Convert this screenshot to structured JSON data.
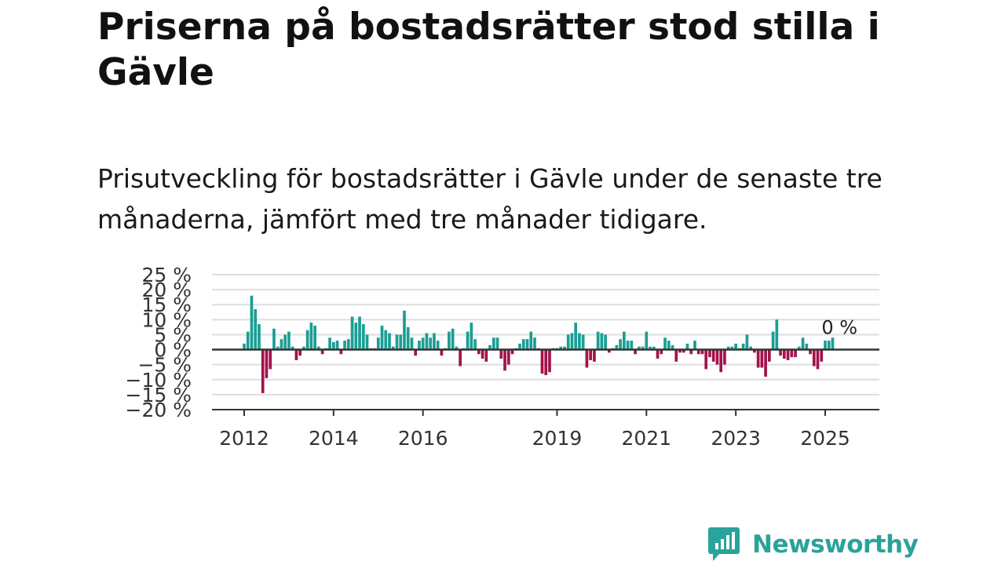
{
  "title": "Priserna på bostadsrätter stod stilla i Gävle",
  "subtitle": "Prisutveckling för bostadsrätter i Gävle under de senaste tre månaderna, jämfört med tre månader tidigare.",
  "brand": {
    "name": "Newsworthy",
    "color": "#2aa39a"
  },
  "chart_data": {
    "type": "bar",
    "title": "",
    "xlabel": "",
    "ylabel": "",
    "ylim": [
      -20,
      25
    ],
    "yticks": [
      25,
      20,
      15,
      10,
      5,
      0,
      -5,
      -10,
      -15,
      -20
    ],
    "y_tick_labels": [
      "25 %",
      "20 %",
      "15 %",
      "10 %",
      "5 %",
      "0 %",
      "−5 %",
      "−10 %",
      "−15 %",
      "−20 %"
    ],
    "x_tick_labels": [
      "2012",
      "2014",
      "2016",
      "2019",
      "2021",
      "2023",
      "2025"
    ],
    "x_tick_years": [
      2012,
      2014,
      2016,
      2019,
      2021,
      2023,
      2025
    ],
    "grid": true,
    "colors": {
      "positive": "#1a9e94",
      "negative": "#a3124a",
      "grid": "#dedede",
      "axis": "#333333"
    },
    "last_value_label": "0 %",
    "start": "2012-01",
    "values": [
      2,
      6,
      18,
      13.5,
      8.5,
      -14.5,
      -9.5,
      -6.5,
      7,
      1,
      3.5,
      5,
      6,
      1,
      -3.5,
      -2,
      1,
      6.5,
      9,
      8,
      1,
      -1.5,
      0.5,
      4,
      2.5,
      3,
      -1.5,
      3,
      3.5,
      11,
      9,
      11,
      8.5,
      5,
      0.5,
      0.5,
      4,
      8,
      6.5,
      5.5,
      1,
      5,
      5,
      13,
      7.5,
      4,
      -2,
      3,
      4,
      5.5,
      4,
      5.5,
      3,
      -2,
      0.5,
      6,
      7,
      1,
      -5.5,
      0.5,
      6,
      9,
      3.5,
      -1.5,
      -3,
      -4,
      1.5,
      4,
      4,
      -3,
      -7,
      -5,
      -1.5,
      0.5,
      2,
      3.5,
      3.5,
      6,
      4,
      0.5,
      -8,
      -8.5,
      -7.5,
      0.5,
      0.5,
      1,
      1,
      5,
      5.5,
      9,
      5.5,
      5,
      -6,
      -3.5,
      -4,
      6,
      5.5,
      5,
      -1,
      0.5,
      1.5,
      3.5,
      6,
      3,
      3,
      -1.5,
      1,
      1,
      6,
      1,
      1,
      -3,
      -1.5,
      4,
      3,
      1.5,
      -4,
      -1,
      -1,
      2,
      -1.5,
      3,
      -1.5,
      -1.5,
      -6.5,
      -2.5,
      -4,
      -5,
      -7.5,
      -5,
      1,
      1,
      2,
      0.5,
      2,
      5,
      1,
      -1,
      -6,
      -6,
      -9,
      -4,
      6,
      10,
      -2,
      -3,
      -3.5,
      -2.5,
      -2.5,
      1,
      4,
      2,
      -1.5,
      -5.5,
      -6.5,
      -4,
      3,
      3,
      4,
      0
    ]
  }
}
